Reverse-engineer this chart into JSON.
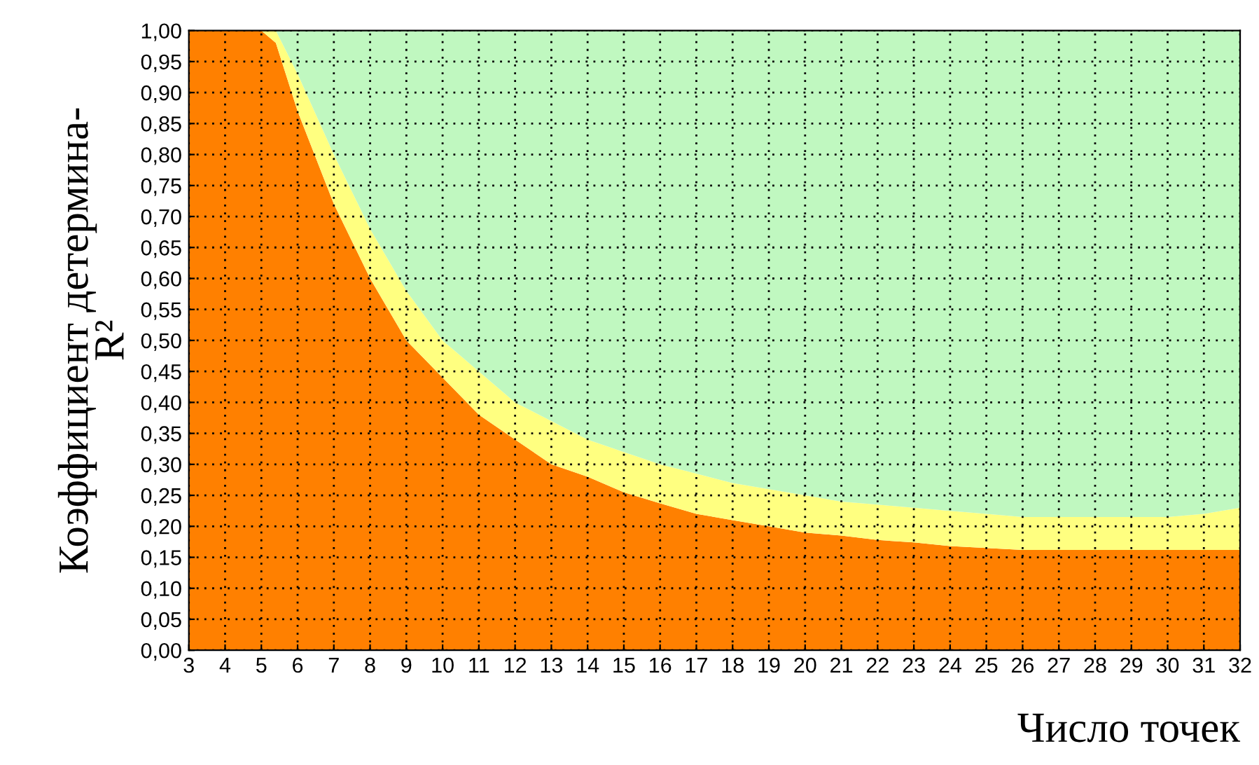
{
  "chart_data": {
    "type": "area",
    "stacked": true,
    "xlabel": "Число точек",
    "ylabel": "Коэффициент детермина-\nR²",
    "x": [
      3,
      4,
      5,
      5.4,
      6,
      7,
      8,
      9,
      10,
      11,
      12,
      13,
      14,
      15,
      16,
      17,
      18,
      19,
      20,
      21,
      22,
      23,
      24,
      25,
      26,
      27,
      28,
      29,
      30,
      31,
      32
    ],
    "series": [
      {
        "color": "#ff8000",
        "values": [
          1,
          1,
          1,
          0.98,
          0.87,
          0.72,
          0.6,
          0.5,
          0.44,
          0.38,
          0.34,
          0.3,
          0.28,
          0.255,
          0.237,
          0.22,
          0.21,
          0.2,
          0.19,
          0.185,
          0.178,
          0.174,
          0.168,
          0.165,
          0.162,
          0.162,
          0.162,
          0.162,
          0.162,
          0.162,
          0.162
        ]
      },
      {
        "color": "#ffff80",
        "values": [
          0,
          0,
          0,
          0.02,
          0.06,
          0.08,
          0.08,
          0.08,
          0.06,
          0.07,
          0.06,
          0.07,
          0.06,
          0.065,
          0.063,
          0.065,
          0.06,
          0.06,
          0.06,
          0.055,
          0.057,
          0.056,
          0.057,
          0.055,
          0.053,
          0.053,
          0.053,
          0.053,
          0.053,
          0.058,
          0.068
        ]
      },
      {
        "color": "#c0f8c0",
        "values": [
          0,
          0,
          0,
          0,
          0.07,
          0.2,
          0.32,
          0.42,
          0.5,
          0.55,
          0.6,
          0.63,
          0.66,
          0.68,
          0.7,
          0.715,
          0.73,
          0.74,
          0.75,
          0.76,
          0.765,
          0.77,
          0.775,
          0.78,
          0.785,
          0.785,
          0.785,
          0.785,
          0.785,
          0.78,
          0.77
        ]
      }
    ],
    "xlim": [
      3,
      32
    ],
    "xticks": [
      3,
      4,
      5,
      6,
      7,
      8,
      9,
      10,
      11,
      12,
      13,
      14,
      15,
      16,
      17,
      18,
      19,
      20,
      21,
      22,
      23,
      24,
      25,
      26,
      27,
      28,
      29,
      30,
      31,
      32
    ],
    "ylim": [
      0,
      1
    ],
    "yticks": [
      {
        "value": 0,
        "label": "0,00"
      },
      {
        "value": 0.05,
        "label": "0,05"
      },
      {
        "value": 0.1,
        "label": "0,10"
      },
      {
        "value": 0.15,
        "label": "0,15"
      },
      {
        "value": 0.2,
        "label": "0,20"
      },
      {
        "value": 0.25,
        "label": "0,25"
      },
      {
        "value": 0.3,
        "label": "0,30"
      },
      {
        "value": 0.35,
        "label": "0,35"
      },
      {
        "value": 0.4,
        "label": "0,40"
      },
      {
        "value": 0.45,
        "label": "0,45"
      },
      {
        "value": 0.5,
        "label": "0,50"
      },
      {
        "value": 0.55,
        "label": "0,55"
      },
      {
        "value": 0.6,
        "label": "0,60"
      },
      {
        "value": 0.65,
        "label": "0,65"
      },
      {
        "value": 0.7,
        "label": "0,70"
      },
      {
        "value": 0.75,
        "label": "0,75"
      },
      {
        "value": 0.8,
        "label": "0,80"
      },
      {
        "value": 0.85,
        "label": "0,85"
      },
      {
        "value": 0.9,
        "label": "0,90"
      },
      {
        "value": 0.95,
        "label": "0,95"
      },
      {
        "value": 1,
        "label": "1,00"
      }
    ],
    "grid": true
  }
}
